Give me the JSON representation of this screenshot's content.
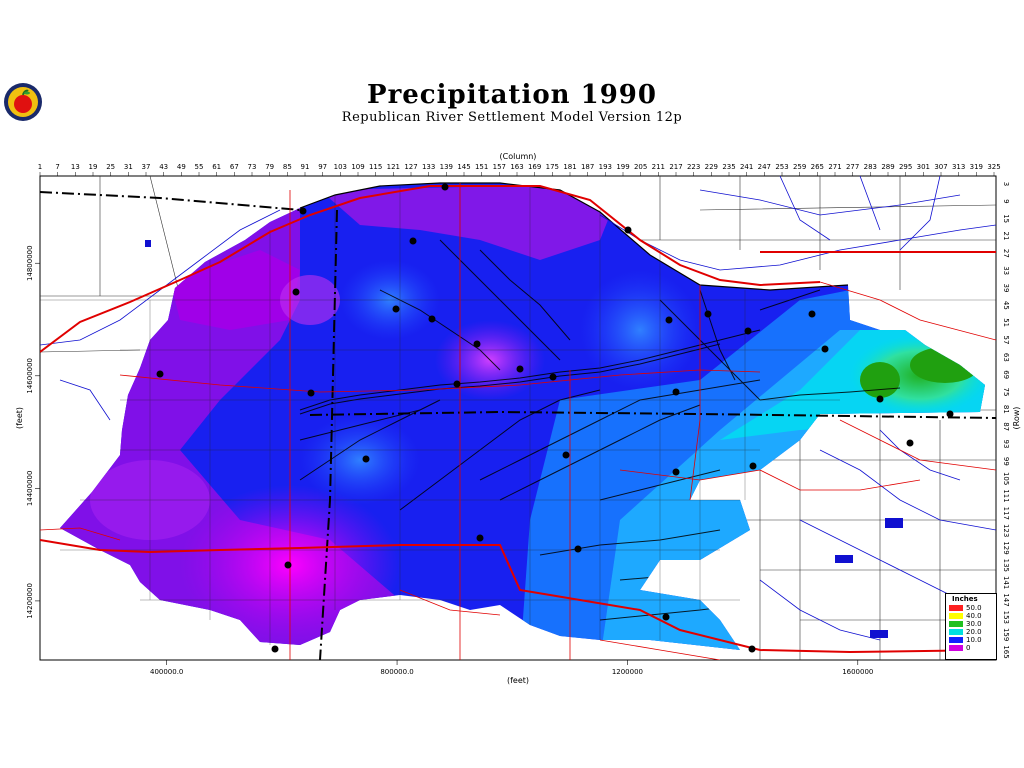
{
  "title": "Precipitation  1990",
  "subtitle": "Republican  River  Settlement  Model  Version  12p",
  "logo": {
    "icon": "apple-seal-icon"
  },
  "axes": {
    "top_label": "(Column)",
    "bottom_label": "(feet)",
    "left_label": "(feet)",
    "right_label": "(Row)",
    "columns": [
      "1",
      "7",
      "13",
      "19",
      "25",
      "31",
      "37",
      "43",
      "49",
      "55",
      "61",
      "67",
      "73",
      "79",
      "85",
      "91",
      "97",
      "103",
      "109",
      "115",
      "121",
      "127",
      "133",
      "139",
      "145",
      "151",
      "157",
      "163",
      "169",
      "175",
      "181",
      "187",
      "193",
      "199",
      "205",
      "211",
      "217",
      "223",
      "229",
      "235",
      "241",
      "247",
      "253",
      "259",
      "265",
      "271",
      "277",
      "283",
      "289",
      "295",
      "301",
      "307",
      "313",
      "319",
      "325"
    ],
    "rows": [
      "3",
      "9",
      "15",
      "21",
      "27",
      "33",
      "39",
      "45",
      "51",
      "57",
      "63",
      "69",
      "75",
      "81",
      "87",
      "93",
      "99",
      "105",
      "111",
      "117",
      "123",
      "129",
      "135",
      "141",
      "147",
      "153",
      "159",
      "165"
    ],
    "x_ticks": [
      {
        "label": "400000.0",
        "value": 400000
      },
      {
        "label": "800000.0",
        "value": 800000
      },
      {
        "label": "1200000",
        "value": 1200000
      },
      {
        "label": "1600000",
        "value": 1600000
      }
    ],
    "y_ticks": [
      {
        "label": "14800000",
        "value": 14800000
      },
      {
        "label": "14600000",
        "value": 14600000
      },
      {
        "label": "14400000",
        "value": 14400000
      },
      {
        "label": "14200000",
        "value": 14200000
      }
    ]
  },
  "legend": {
    "title": "Inches",
    "entries": [
      {
        "label": "50.0",
        "color": "#ff2020"
      },
      {
        "label": "40.0",
        "color": "#ffff00"
      },
      {
        "label": "30.0",
        "color": "#20c020"
      },
      {
        "label": "20.0",
        "color": "#00e0e0"
      },
      {
        "label": "10.0",
        "color": "#1020ff"
      },
      {
        "label": "0",
        "color": "#d000e0"
      }
    ]
  }
}
